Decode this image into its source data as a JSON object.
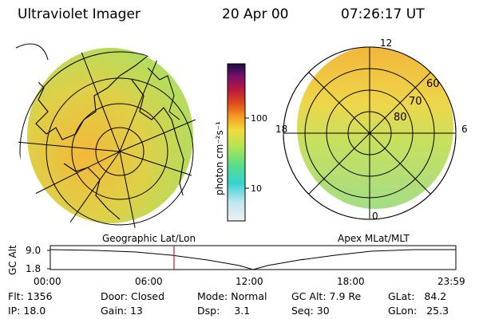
{
  "header": {
    "title": "Ultraviolet Imager",
    "date": "20 Apr 00",
    "time": "07:26:17 UT"
  },
  "colorbar": {
    "unit_label": "photon cm⁻²s⁻¹",
    "ticks": [
      "100",
      "10"
    ],
    "scale": "log",
    "colors": [
      "#e6e6e6",
      "#3cd8d8",
      "#7ee07a",
      "#c9e25a",
      "#f4cf3a",
      "#f59a24",
      "#d6281c",
      "#9b0f6e",
      "#1e0f50"
    ]
  },
  "left_panel": {
    "caption": "Geographic Lat/Lon",
    "fill_colors": {
      "dayside": "#f0c338",
      "nightside": "#b8dc5a"
    }
  },
  "right_panel": {
    "caption": "Apex MLat/MLT",
    "mlt_labels": {
      "top": "12",
      "bottom": "0",
      "left": "18",
      "right": "6"
    },
    "lat_labels": [
      "60",
      "70",
      "80"
    ]
  },
  "altitude_plot": {
    "axis_title": "GC Alt",
    "y_ticks": [
      "9.0",
      "1.8"
    ],
    "x_ticks": [
      "00:00",
      "06:00",
      "12:00",
      "18:00",
      "23:59"
    ],
    "marker_color": "#d01818"
  },
  "info": {
    "flt": {
      "label": "Flt:",
      "value": "1356"
    },
    "ip": {
      "label": "IP:",
      "value": "18.0"
    },
    "door": {
      "label": "Door:",
      "value": "Closed"
    },
    "gain": {
      "label": "Gain:",
      "value": "13"
    },
    "mode": {
      "label": "Mode:",
      "value": "Normal"
    },
    "dsp": {
      "label": "Dsp:",
      "value": "3.1"
    },
    "gcalt": {
      "label": "GC Alt:",
      "value": "7.9 Re"
    },
    "seq": {
      "label": "Seq:",
      "value": "30"
    },
    "glat": {
      "label": "GLat:",
      "value": "84.2"
    },
    "glon": {
      "label": "GLon:",
      "value": "25.3"
    }
  }
}
